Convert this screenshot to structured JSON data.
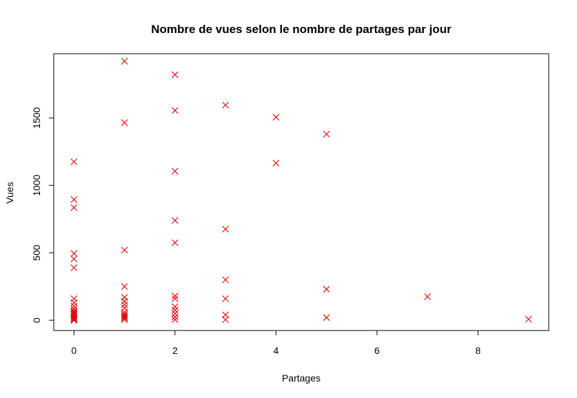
{
  "chart_data": {
    "type": "scatter",
    "title": "Nombre de vues selon le nombre de partages par jour",
    "xlabel": "Partages",
    "ylabel": "Vues",
    "xlim": [
      -0.4,
      9.4
    ],
    "ylim": [
      -76,
      1976
    ],
    "xticks": [
      0,
      2,
      4,
      6,
      8
    ],
    "yticks": [
      0,
      500,
      1000,
      1500
    ],
    "marker": "x",
    "color": "#dd0000",
    "grid": false,
    "series": [
      {
        "points": [
          {
            "x": 0,
            "y": 1175
          },
          {
            "x": 0,
            "y": 895
          },
          {
            "x": 0,
            "y": 835
          },
          {
            "x": 0,
            "y": 495
          },
          {
            "x": 0,
            "y": 455
          },
          {
            "x": 0,
            "y": 390
          },
          {
            "x": 0,
            "y": 160
          },
          {
            "x": 0,
            "y": 130
          },
          {
            "x": 0,
            "y": 105
          },
          {
            "x": 0,
            "y": 85
          },
          {
            "x": 0,
            "y": 70
          },
          {
            "x": 0,
            "y": 60
          },
          {
            "x": 0,
            "y": 50
          },
          {
            "x": 0,
            "y": 40
          },
          {
            "x": 0,
            "y": 30
          },
          {
            "x": 0,
            "y": 20
          },
          {
            "x": 0,
            "y": 10
          },
          {
            "x": 0,
            "y": 5
          },
          {
            "x": 0,
            "y": 0
          },
          {
            "x": 1,
            "y": 1920
          },
          {
            "x": 1,
            "y": 1465
          },
          {
            "x": 1,
            "y": 520
          },
          {
            "x": 1,
            "y": 250
          },
          {
            "x": 1,
            "y": 170
          },
          {
            "x": 1,
            "y": 140
          },
          {
            "x": 1,
            "y": 115
          },
          {
            "x": 1,
            "y": 90
          },
          {
            "x": 1,
            "y": 60
          },
          {
            "x": 1,
            "y": 45
          },
          {
            "x": 1,
            "y": 35
          },
          {
            "x": 1,
            "y": 25
          },
          {
            "x": 1,
            "y": 15
          },
          {
            "x": 1,
            "y": 5
          },
          {
            "x": 2,
            "y": 1820
          },
          {
            "x": 2,
            "y": 1555
          },
          {
            "x": 2,
            "y": 1105
          },
          {
            "x": 2,
            "y": 740
          },
          {
            "x": 2,
            "y": 575
          },
          {
            "x": 2,
            "y": 180
          },
          {
            "x": 2,
            "y": 160
          },
          {
            "x": 2,
            "y": 100
          },
          {
            "x": 2,
            "y": 75
          },
          {
            "x": 2,
            "y": 50
          },
          {
            "x": 2,
            "y": 25
          },
          {
            "x": 2,
            "y": 5
          },
          {
            "x": 3,
            "y": 1595
          },
          {
            "x": 3,
            "y": 675
          },
          {
            "x": 3,
            "y": 300
          },
          {
            "x": 3,
            "y": 160
          },
          {
            "x": 3,
            "y": 40
          },
          {
            "x": 3,
            "y": 5
          },
          {
            "x": 4,
            "y": 1505
          },
          {
            "x": 4,
            "y": 1165
          },
          {
            "x": 5,
            "y": 1380
          },
          {
            "x": 5,
            "y": 230
          },
          {
            "x": 5,
            "y": 20
          },
          {
            "x": 7,
            "y": 175
          },
          {
            "x": 9,
            "y": 8
          }
        ]
      }
    ]
  }
}
